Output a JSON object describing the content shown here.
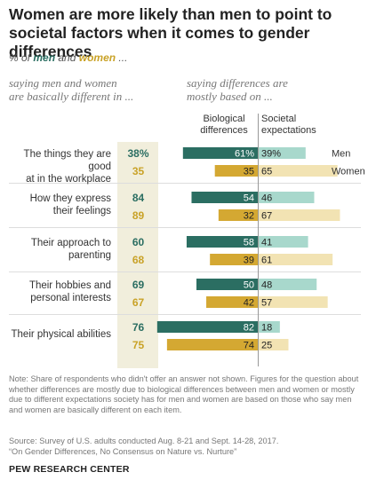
{
  "title": "Women are more likely than men to point to societal factors when it comes to gender differences",
  "subtitle": {
    "prefix": "% of ",
    "men": "men",
    "and": " and ",
    "women": "women",
    "suffix": " ..."
  },
  "left_header": [
    "saying men and women",
    "are basically different in ..."
  ],
  "right_header": [
    "saying differences are",
    "mostly based on ..."
  ],
  "column_headers": {
    "biological": [
      "Biological",
      "differences"
    ],
    "societal": [
      "Societal",
      "expectations"
    ]
  },
  "legend": {
    "men": "Men",
    "women": "Women"
  },
  "colors": {
    "men_bio": "#2b6e62",
    "men_soc": "#a8d8cc",
    "women_bio": "#d4a832",
    "women_soc": "#f2e3b3",
    "highlight": "#f1eedc"
  },
  "chart_data": {
    "type": "bar",
    "categories": [
      "The things they are good at in the workplace",
      "How they express their feelings",
      "Their approach to parenting",
      "Their hobbies and personal interests",
      "Their physical abilities"
    ],
    "category_lines": [
      [
        "The things they are good",
        "at in the workplace"
      ],
      [
        "How they express",
        "their feelings"
      ],
      [
        "Their approach to",
        "parenting"
      ],
      [
        "Their hobbies and",
        "personal interests"
      ],
      [
        "Their physical abilities"
      ]
    ],
    "different": {
      "men": [
        38,
        84,
        60,
        69,
        76
      ],
      "women": [
        35,
        89,
        68,
        67,
        75
      ],
      "men_labels": [
        "38%",
        "84",
        "60",
        "69",
        "76"
      ],
      "women_labels": [
        "35",
        "89",
        "68",
        "67",
        "75"
      ]
    },
    "series": [
      {
        "name": "Men",
        "biological": [
          61,
          54,
          58,
          50,
          82
        ],
        "societal": [
          39,
          46,
          41,
          48,
          18
        ],
        "biological_labels": [
          "61%",
          "54",
          "58",
          "50",
          "82"
        ],
        "societal_labels": [
          "39%",
          "46",
          "41",
          "48",
          "18"
        ]
      },
      {
        "name": "Women",
        "biological": [
          35,
          32,
          39,
          42,
          74
        ],
        "societal": [
          65,
          67,
          61,
          57,
          25
        ],
        "biological_labels": [
          "35",
          "32",
          "39",
          "42",
          "74"
        ],
        "societal_labels": [
          "65",
          "67",
          "61",
          "57",
          "25"
        ]
      }
    ]
  },
  "note": "Note: Share of respondents who didn't offer an answer not shown. Figures for the question about whether differences are mostly due to biological differences between men and women or mostly due to different expectations society has for men and women are based on those who say men and women are basically different on each item.",
  "source": [
    "Source: Survey of U.S. adults conducted Aug. 8-21 and Sept. 14-28, 2017.",
    "“On Gender Differences, No Consensus on Nature vs. Nurture”"
  ],
  "brand": "PEW RESEARCH CENTER"
}
